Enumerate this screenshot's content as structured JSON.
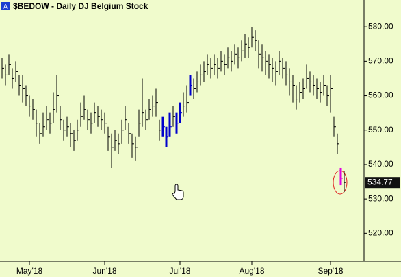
{
  "chart_data": {
    "type": "ohlc",
    "title": "$BEDOW - Daily  DJ Belgium Stock",
    "high": [
      571,
      569,
      572,
      568,
      570,
      566,
      566,
      563,
      560,
      559,
      556,
      552,
      555,
      557,
      555,
      561,
      566,
      557,
      553,
      554,
      552,
      550,
      553,
      558,
      560,
      556,
      555,
      558,
      557,
      556,
      555,
      551,
      549,
      550,
      549,
      553,
      557,
      552,
      549,
      548,
      556,
      565,
      556,
      559,
      560,
      562,
      553,
      554,
      551,
      555,
      557,
      555,
      558,
      561,
      563,
      566,
      565,
      567,
      569,
      570,
      572,
      571,
      572,
      571,
      573,
      572,
      574,
      573,
      575,
      574,
      576,
      578,
      577,
      580,
      579,
      576,
      575,
      573,
      572,
      571,
      570,
      573,
      571,
      570,
      568,
      566,
      563,
      564,
      565,
      569,
      567,
      566,
      565,
      564,
      566,
      563,
      566,
      554,
      549,
      539,
      538
    ],
    "low": [
      565,
      563,
      566,
      562,
      564,
      560,
      558,
      557,
      554,
      553,
      548,
      546,
      548,
      550,
      549,
      552,
      555,
      550,
      547,
      548,
      545,
      544,
      547,
      551,
      553,
      550,
      549,
      552,
      551,
      550,
      549,
      544,
      539,
      544,
      543,
      546,
      550,
      546,
      542,
      541,
      548,
      551,
      550,
      553,
      554,
      554,
      547,
      548,
      545,
      548,
      551,
      549,
      552,
      554,
      555,
      560,
      559,
      561,
      563,
      564,
      566,
      565,
      566,
      565,
      567,
      566,
      568,
      567,
      569,
      568,
      570,
      571,
      571,
      574,
      573,
      568,
      567,
      566,
      565,
      564,
      563,
      566,
      565,
      563,
      560,
      558,
      556,
      558,
      559,
      562,
      561,
      560,
      559,
      558,
      560,
      557,
      555,
      548,
      543,
      534,
      532
    ],
    "close": [
      568,
      566,
      569,
      565,
      567,
      563,
      562,
      560,
      557,
      556,
      552,
      549,
      551,
      553,
      552,
      556,
      560,
      553,
      550,
      551,
      549,
      547,
      550,
      554,
      556,
      553,
      552,
      555,
      554,
      553,
      552,
      548,
      545,
      547,
      546,
      550,
      553,
      549,
      546,
      545,
      552,
      555,
      553,
      556,
      557,
      558,
      550,
      551,
      548,
      551,
      554,
      552,
      555,
      557,
      558,
      563,
      562,
      564,
      566,
      567,
      569,
      568,
      569,
      568,
      570,
      569,
      571,
      570,
      572,
      571,
      573,
      575,
      574,
      577,
      576,
      572,
      571,
      570,
      569,
      568,
      567,
      570,
      568,
      566,
      564,
      563,
      559,
      561,
      562,
      565,
      564,
      563,
      562,
      561,
      563,
      560,
      562,
      551,
      546,
      536,
      534.77
    ],
    "colors": [
      "#000",
      "#000",
      "#000",
      "#000",
      "#000",
      "#000",
      "#000",
      "#000",
      "#000",
      "#000",
      "#000",
      "#000",
      "#000",
      "#000",
      "#000",
      "#000",
      "#000",
      "#000",
      "#000",
      "#000",
      "#000",
      "#000",
      "#000",
      "#000",
      "#000",
      "#000",
      "#000",
      "#000",
      "#000",
      "#000",
      "#000",
      "#000",
      "#000",
      "#000",
      "#000",
      "#000",
      "#000",
      "#000",
      "#000",
      "#000",
      "#000",
      "#000",
      "#000",
      "#000",
      "#000",
      "#000",
      "#000",
      "#0000cc",
      "#0000cc",
      "#0000cc",
      "#000",
      "#0000cc",
      "#0000cc",
      "#000",
      "#000",
      "#0000cc",
      "#000",
      "#000",
      "#000",
      "#000",
      "#000",
      "#000",
      "#000",
      "#000",
      "#000",
      "#000",
      "#000",
      "#000",
      "#000",
      "#000",
      "#000",
      "#000",
      "#000",
      "#000",
      "#000",
      "#000",
      "#000",
      "#000",
      "#000",
      "#000",
      "#000",
      "#000",
      "#000",
      "#000",
      "#000",
      "#000",
      "#000",
      "#000",
      "#000",
      "#000",
      "#000",
      "#000",
      "#000",
      "#000",
      "#000",
      "#000",
      "#000",
      "#000",
      "#000",
      "#e000e0",
      "#000"
    ],
    "ylim": [
      512.1,
      587.8
    ],
    "yticks": [
      {
        "value": 520,
        "label": "520.00"
      },
      {
        "value": 530,
        "label": "530.00"
      },
      {
        "value": 540,
        "label": "540.00"
      },
      {
        "value": 550,
        "label": "550.00"
      },
      {
        "value": 560,
        "label": "560.00"
      },
      {
        "value": 570,
        "label": "570.00"
      },
      {
        "value": 580,
        "label": "580.00"
      }
    ],
    "xticks": [
      {
        "value": 8,
        "label": "May'18"
      },
      {
        "value": 30,
        "label": "Jun'18"
      },
      {
        "value": 52,
        "label": "Jul'18"
      },
      {
        "value": 73,
        "label": "Aug'18"
      },
      {
        "value": 96,
        "label": "Sep'18"
      }
    ]
  }
}
